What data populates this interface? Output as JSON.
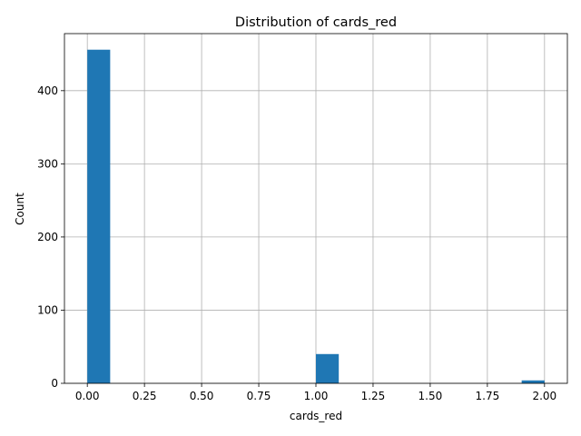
{
  "chart_data": {
    "type": "bar",
    "title": "Distribution of cards_red",
    "xlabel": "cards_red",
    "ylabel": "Count",
    "xlim": [
      -0.1,
      2.1
    ],
    "ylim": [
      0,
      478
    ],
    "x_ticks": [
      0.0,
      0.25,
      0.5,
      0.75,
      1.0,
      1.25,
      1.5,
      1.75,
      2.0
    ],
    "x_tick_labels": [
      "0.00",
      "0.25",
      "0.50",
      "0.75",
      "1.00",
      "1.25",
      "1.50",
      "1.75",
      "2.00"
    ],
    "y_ticks": [
      0,
      100,
      200,
      300,
      400
    ],
    "y_tick_labels": [
      "0",
      "100",
      "200",
      "300",
      "400"
    ],
    "bins": [
      {
        "start": 0.0,
        "end": 0.1,
        "count": 456
      },
      {
        "start": 1.0,
        "end": 1.1,
        "count": 40
      },
      {
        "start": 1.9,
        "end": 2.0,
        "count": 4
      }
    ],
    "grid": true,
    "bar_color": "#1f77b4"
  }
}
